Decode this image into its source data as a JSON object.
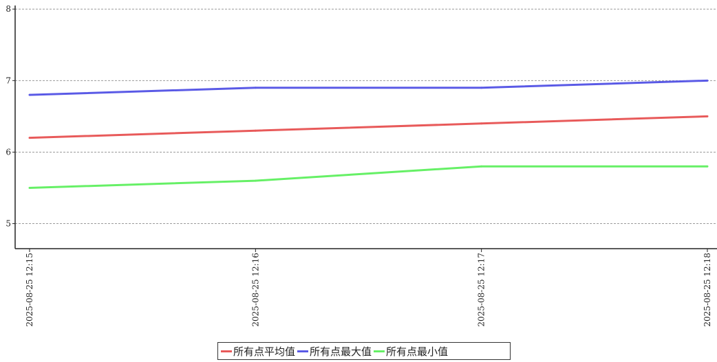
{
  "chart_data": {
    "type": "line",
    "x": [
      "2025-08-25 12:15",
      "2025-08-25 12:16",
      "2025-08-25 12:17",
      "2025-08-25 12:18"
    ],
    "series": [
      {
        "name": "所有点平均值",
        "color": "#e85a5a",
        "values": [
          6.2,
          6.3,
          6.4,
          6.5
        ]
      },
      {
        "name": "所有点最大值",
        "color": "#5a5ae6",
        "values": [
          6.8,
          6.9,
          6.9,
          7.0
        ]
      },
      {
        "name": "所有点最小值",
        "color": "#66f066",
        "values": [
          5.5,
          5.6,
          5.8,
          5.8
        ]
      }
    ],
    "yticks": [
      5,
      6,
      7,
      8
    ],
    "ylim": [
      4.65,
      8.05
    ],
    "grid": true,
    "legend": "bottom-center"
  }
}
